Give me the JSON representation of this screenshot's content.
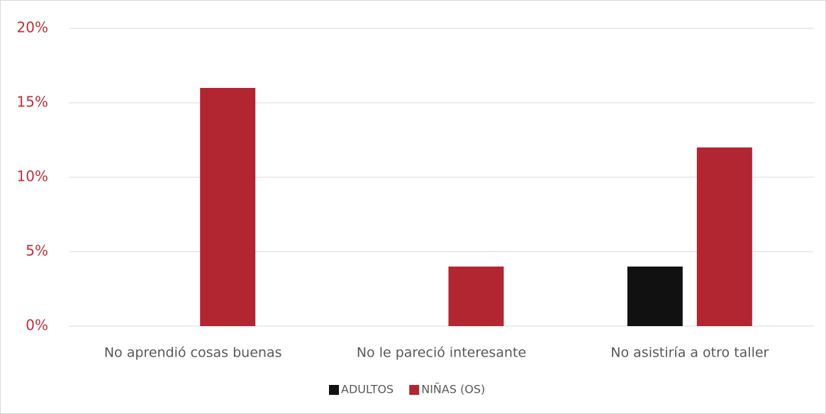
{
  "chart_data": {
    "type": "bar",
    "categories": [
      "No aprendió cosas buenas",
      "No le pareció interesante",
      "No asistiría a otro taller"
    ],
    "series": [
      {
        "name": "ADULTOS",
        "color": "#111111",
        "values": [
          0,
          0,
          4
        ]
      },
      {
        "name": "NIÑAS (OS)",
        "color": "#b22632",
        "values": [
          16,
          4,
          12
        ]
      }
    ],
    "ylim": [
      0,
      20
    ],
    "yticks": [
      {
        "value": 0,
        "label": "0%"
      },
      {
        "value": 5,
        "label": "5%"
      },
      {
        "value": 10,
        "label": "10%"
      },
      {
        "value": 15,
        "label": "15%"
      },
      {
        "value": 20,
        "label": "20%"
      }
    ],
    "grid": true,
    "legend": "bottom"
  }
}
